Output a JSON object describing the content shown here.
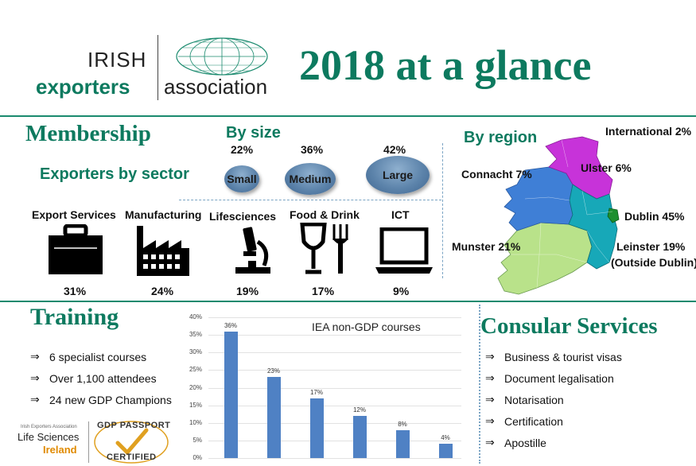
{
  "header": {
    "logo_line1": "IRISH",
    "logo_line2": "exporters",
    "logo_line3": "association",
    "title": "2018 at a glance"
  },
  "membership": {
    "heading": "Membership",
    "by_size_title": "By size",
    "sizes": [
      {
        "label": "Small",
        "pct": "22%"
      },
      {
        "label": "Medium",
        "pct": "36%"
      },
      {
        "label": "Large",
        "pct": "42%"
      }
    ],
    "sector_title": "Exporters by sector",
    "sectors": [
      {
        "label": "Export Services",
        "pct": "31%",
        "icon": "briefcase-icon"
      },
      {
        "label": "Manufacturing",
        "pct": "24%",
        "icon": "factory-icon"
      },
      {
        "label": "Lifesciences",
        "pct": "19%",
        "icon": "microscope-icon"
      },
      {
        "label": "Food & Drink",
        "pct": "17%",
        "icon": "food-drink-icon"
      },
      {
        "label": "ICT",
        "pct": "9%",
        "icon": "laptop-icon"
      }
    ],
    "by_region_title": "By region",
    "regions": {
      "international": "International 2%",
      "ulster": "Ulster 6%",
      "connacht": "Connacht 7%",
      "dublin": "Dublin 45%",
      "munster": "Munster 21%",
      "leinster": "Leinster 19%",
      "leinster_note": "(Outside Dublin)"
    },
    "region_colors": {
      "ulster": "#c733d9",
      "connacht": "#3f7fd6",
      "leinster": "#17a8b8",
      "dublin": "#1c8f2e",
      "munster": "#b9e28a"
    }
  },
  "training": {
    "heading": "Training",
    "items": [
      "6 specialist courses",
      "Over 1,100 attendees",
      "24 new GDP Champions"
    ],
    "badge_small": "Irish Exporters Association",
    "badge_line1": "Life Sciences",
    "badge_line2": "Ireland",
    "passport_top": "GDP PASSPORT",
    "passport_bottom": "CERTIFIED"
  },
  "chart_data": {
    "type": "bar",
    "title": "IEA non-GDP courses",
    "categories": [
      "",
      "",
      "",
      "",
      "",
      ""
    ],
    "values": [
      36,
      23,
      17,
      12,
      8,
      4
    ],
    "data_labels": [
      "36%",
      "23%",
      "17%",
      "12%",
      "8%",
      "4%"
    ],
    "y_ticks": [
      "0%",
      "5%",
      "10%",
      "15%",
      "20%",
      "25%",
      "30%",
      "35%",
      "40%"
    ],
    "ylim": [
      0,
      40
    ],
    "grid": true,
    "color": "#4f81c4"
  },
  "consular": {
    "heading": "Consular Services",
    "items": [
      "Business & tourist visas",
      "Document legalisation",
      "Notarisation",
      "Certification",
      "Apostille"
    ]
  },
  "theme": {
    "accent": "#0d7a5f",
    "rule": "#1a8a6e"
  }
}
